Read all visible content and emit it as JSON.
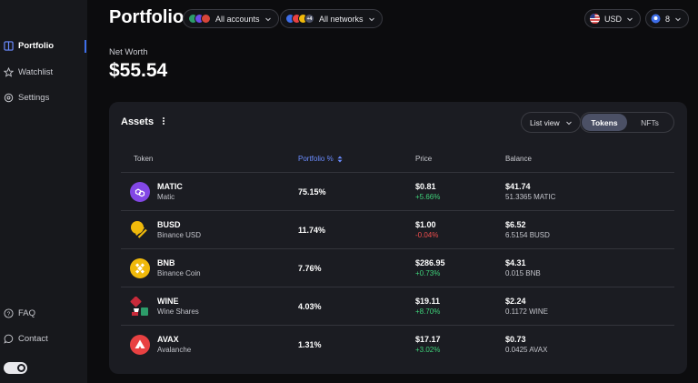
{
  "sidebar": {
    "items": [
      {
        "label": "Portfolio",
        "icon": "portfolio-icon",
        "active": true
      },
      {
        "label": "Watchlist",
        "icon": "star-icon"
      },
      {
        "label": "Settings",
        "icon": "gear-icon"
      }
    ],
    "bottom_items": [
      {
        "label": "FAQ",
        "icon": "help-icon"
      },
      {
        "label": "Contact",
        "icon": "chat-icon"
      }
    ]
  },
  "header": {
    "title": "Portfolio",
    "accounts_label": "All accounts",
    "networks_label": "All networks",
    "networks_extra": "+4",
    "currency": "USD",
    "notifications_count": "8"
  },
  "networth": {
    "label": "Net Worth",
    "value": "$55.54"
  },
  "assets": {
    "title": "Assets",
    "view_select": "List view",
    "tabs": [
      {
        "label": "Tokens",
        "active": true
      },
      {
        "label": "NFTs"
      }
    ],
    "columns": [
      "Token",
      "Portfolio %",
      "Price",
      "Balance"
    ],
    "rows": [
      {
        "symbol": "MATIC",
        "name": "Matic",
        "pct": "75.15%",
        "price": "$0.81",
        "change": "+5.66%",
        "direction": "up",
        "balance": "$41.74",
        "amount": "51.3365 MATIC",
        "color": "#8247e5"
      },
      {
        "symbol": "BUSD",
        "name": "Binance USD",
        "pct": "11.74%",
        "price": "$1.00",
        "change": "-0.04%",
        "direction": "down",
        "balance": "$6.52",
        "amount": "6.5154 BUSD",
        "color": "#f0b90b"
      },
      {
        "symbol": "BNB",
        "name": "Binance Coin",
        "pct": "7.76%",
        "price": "$286.95",
        "change": "+0.73%",
        "direction": "up",
        "balance": "$4.31",
        "amount": "0.015 BNB",
        "color": "#f0b90b"
      },
      {
        "symbol": "WINE",
        "name": "Wine Shares",
        "pct": "4.03%",
        "price": "$19.11",
        "change": "+8.70%",
        "direction": "up",
        "balance": "$2.24",
        "amount": "0.1172 WINE",
        "color": "#c82a3a"
      },
      {
        "symbol": "AVAX",
        "name": "Avalanche",
        "pct": "1.31%",
        "price": "$17.17",
        "change": "+3.02%",
        "direction": "up",
        "balance": "$0.73",
        "amount": "0.0425 AVAX",
        "color": "#e84142"
      }
    ]
  },
  "colors": {
    "accent": "#3e6ee8",
    "positive": "#3fd27a",
    "negative": "#ef4e4e",
    "card": "#1b1c22"
  }
}
